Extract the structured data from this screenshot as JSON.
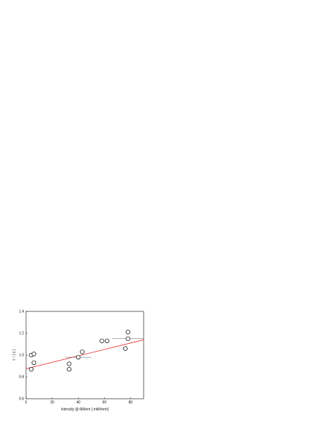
{
  "chart_data": {
    "type": "scatter",
    "x_label": "Intensity @ 866nm  [ mW/mm²]",
    "y_label": "τ⁻¹ [ s ]",
    "xlim": [
      0,
      90
    ],
    "ylim": [
      0.6,
      1.4
    ],
    "xticks": [
      0,
      20,
      40,
      60,
      80
    ],
    "yticks": [
      0.6,
      0.8,
      {
        "value": 1.0,
        "label": "1.0"
      },
      1.2,
      1.4
    ],
    "series": [
      {
        "color": "#000000",
        "x": [
          4,
          4,
          6,
          6,
          33,
          33,
          40,
          43,
          58,
          62,
          76,
          78,
          78
        ],
        "values": [
          0.87,
          1.0,
          1.01,
          0.93,
          0.92,
          0.87,
          0.98,
          1.03,
          1.13,
          1.13,
          1.06,
          1.15,
          1.21
        ],
        "xerr": [
          2,
          2,
          2,
          2,
          2,
          2,
          10,
          2,
          2,
          2,
          2,
          12,
          2
        ],
        "yerr": [
          0.02,
          0.02,
          0.02,
          0.02,
          0.02,
          0.02,
          0.02,
          0.02,
          0.02,
          0.02,
          0.02,
          0.02,
          0.02
        ]
      }
    ],
    "fit": {
      "color": "#e8201f",
      "x": [
        0,
        90
      ],
      "values": [
        0.875,
        1.14
      ]
    }
  }
}
